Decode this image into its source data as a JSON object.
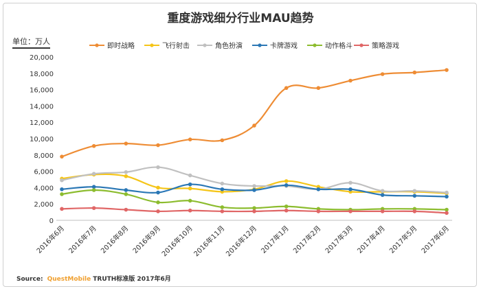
{
  "chart_data": {
    "type": "line",
    "title": "重度游戏细分行业MAU趋势",
    "unit_label": "单位：万人",
    "xlabel": "",
    "ylabel": "",
    "ylim": [
      0,
      20000
    ],
    "yticks": [
      "0",
      "2,000",
      "4,000",
      "6,000",
      "8,000",
      "10,000",
      "12,000",
      "14,000",
      "16,000",
      "18,000",
      "20,000"
    ],
    "categories": [
      "2016年6月",
      "2016年7月",
      "2016年8月",
      "2016年9月",
      "2016年10月",
      "2016年11月",
      "2016年12月",
      "2017年1月",
      "2017年2月",
      "2017年3月",
      "2017年4月",
      "2017年5月",
      "2017年6月"
    ],
    "legend_position": "top",
    "grid": false,
    "series": [
      {
        "name": "即时战略",
        "color": "#ee8c34",
        "values": [
          7800,
          9100,
          9400,
          9200,
          9900,
          9800,
          11600,
          16200,
          16200,
          17100,
          17900,
          18100,
          18400
        ]
      },
      {
        "name": "飞行射击",
        "color": "#f5c518",
        "values": [
          5100,
          5600,
          5400,
          4000,
          3900,
          3500,
          3800,
          4800,
          4100,
          3500,
          3500,
          3500,
          3300
        ]
      },
      {
        "name": "角色扮演",
        "color": "#c0c0c0",
        "values": [
          4900,
          5700,
          5900,
          6500,
          5500,
          4500,
          4200,
          4200,
          3800,
          4600,
          3600,
          3600,
          3400
        ]
      },
      {
        "name": "卡牌游戏",
        "color": "#2a77b5",
        "values": [
          3800,
          4100,
          3700,
          3400,
          4400,
          3800,
          3700,
          4300,
          3800,
          3800,
          3100,
          3000,
          2900
        ]
      },
      {
        "name": "动作格斗",
        "color": "#8cbc2e",
        "values": [
          3200,
          3700,
          3200,
          2200,
          2400,
          1600,
          1500,
          1700,
          1400,
          1300,
          1400,
          1400,
          1300
        ]
      },
      {
        "name": "策略游戏",
        "color": "#e06666",
        "values": [
          1400,
          1500,
          1300,
          1100,
          1200,
          1100,
          1100,
          1200,
          1100,
          1100,
          1100,
          1100,
          900
        ]
      }
    ]
  },
  "source": {
    "label": "Source:",
    "brand": "QuestMobile",
    "rest": "TRUTH标准版 2017年6月"
  }
}
